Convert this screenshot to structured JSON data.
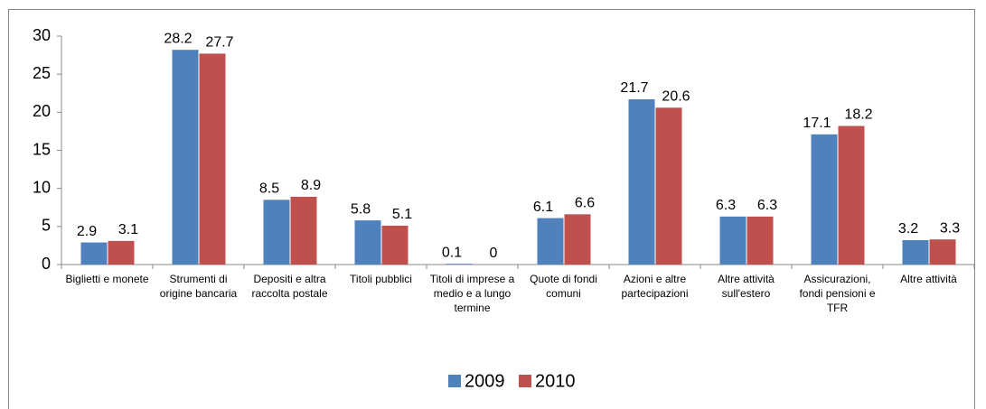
{
  "chart_data": {
    "type": "bar",
    "categories": [
      "Biglietti e monete",
      "Strumenti di origine bancaria",
      "Depositi e altra raccolta postale",
      "Titoli pubblici",
      "Titoli di imprese a medio e a lungo termine",
      "Quote di fondi comuni",
      "Azioni e altre partecipazioni",
      "Altre attività sull'estero",
      "Assicurazioni, fondi pensioni e TFR",
      "Altre attività"
    ],
    "series": [
      {
        "name": "2009",
        "color": "#4f81bd",
        "values": [
          2.9,
          28.2,
          8.5,
          5.8,
          0.1,
          6.1,
          21.7,
          6.3,
          17.1,
          3.2
        ]
      },
      {
        "name": "2010",
        "color": "#c0504d",
        "values": [
          3.1,
          27.7,
          8.9,
          5.1,
          0,
          6.6,
          20.6,
          6.3,
          18.2,
          3.3
        ]
      }
    ],
    "ylim": [
      0,
      30
    ],
    "yticks": [
      0,
      5,
      10,
      15,
      20,
      25,
      30
    ],
    "legend": "bottom"
  }
}
